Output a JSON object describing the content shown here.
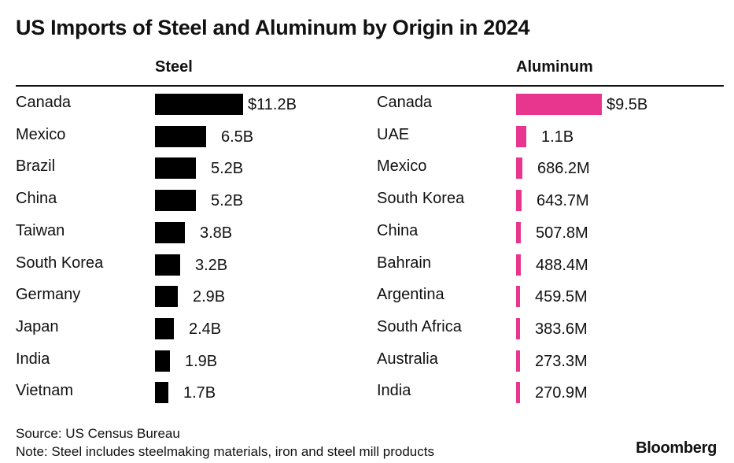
{
  "chart_data": [
    {
      "type": "bar",
      "orientation": "horizontal",
      "title": "Steel",
      "categories": [
        "Canada",
        "Mexico",
        "Brazil",
        "China",
        "Taiwan",
        "South Korea",
        "Germany",
        "Japan",
        "India",
        "Vietnam"
      ],
      "values": [
        11.2,
        6.5,
        5.2,
        5.2,
        3.8,
        3.2,
        2.9,
        2.4,
        1.9,
        1.7
      ],
      "unit": "billion USD",
      "value_labels": [
        "$11.2B",
        "6.5B",
        "5.2B",
        "5.2B",
        "3.8B",
        "3.2B",
        "2.9B",
        "2.4B",
        "1.9B",
        "1.7B"
      ],
      "color": "#000000"
    },
    {
      "type": "bar",
      "orientation": "horizontal",
      "title": "Aluminum",
      "categories": [
        "Canada",
        "UAE",
        "Mexico",
        "South Korea",
        "China",
        "Bahrain",
        "Argentina",
        "South Africa",
        "Australia",
        "India"
      ],
      "values": [
        9.5,
        1.1,
        0.6862,
        0.6437,
        0.5078,
        0.4884,
        0.4595,
        0.3836,
        0.2733,
        0.2709
      ],
      "unit": "billion USD",
      "value_labels": [
        "$9.5B",
        "1.1B",
        "686.2M",
        "643.7M",
        "507.8M",
        "488.4M",
        "459.5M",
        "383.6M",
        "273.3M",
        "270.9M"
      ],
      "color": "#e8368f"
    }
  ],
  "header": {
    "title": "US Imports of Steel and Aluminum by Origin in 2024"
  },
  "footer": {
    "source": "Source: US Census Bureau",
    "note": "Note: Steel includes steelmaking materials, iron and steel mill products",
    "brand": "Bloomberg"
  }
}
